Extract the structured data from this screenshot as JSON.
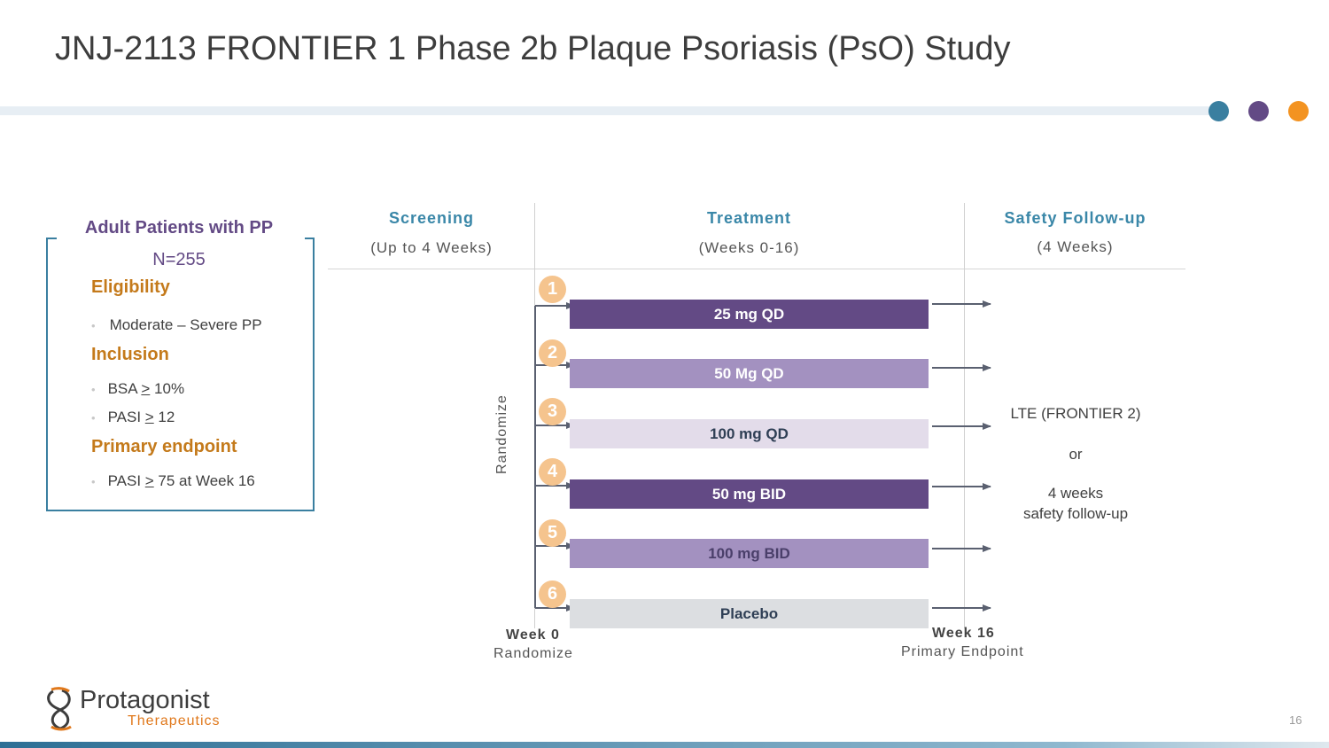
{
  "title": "JNJ-2113 FRONTIER 1 Phase 2b Plaque Psoriasis (PsO) Study",
  "colors": {
    "dot1": "#3a7fa0",
    "dot2": "#634a85",
    "dot3": "#f39321",
    "purple_dark": "#634a85",
    "purple_mid": "#a391c0",
    "purple_light": "#e3dcea",
    "gray_light": "#dcdee1",
    "accent_orange": "#c47a1b"
  },
  "patients": {
    "title": "Adult Patients with PP",
    "n": "N=255",
    "eligibility": {
      "heading": "Eligibility",
      "items": [
        "Moderate – Severe PP"
      ]
    },
    "inclusion": {
      "heading": "Inclusion",
      "items": [
        {
          "prefix": "BSA ",
          "sym": ">",
          "suffix": " 10%"
        },
        {
          "prefix": "PASI ",
          "sym": ">",
          "suffix": " 12"
        }
      ]
    },
    "endpoint": {
      "heading": "Primary endpoint",
      "items": [
        {
          "prefix": "PASI ",
          "sym": ">",
          "suffix": " 75 at Week 16"
        }
      ]
    }
  },
  "phases": [
    {
      "name": "Screening",
      "sub": "(Up to 4 Weeks)"
    },
    {
      "name": "Treatment",
      "sub": "(Weeks 0-16)"
    },
    {
      "name": "Safety Follow-up",
      "sub": "(4 Weeks)"
    }
  ],
  "randomize_label": "Randomize",
  "arms": [
    {
      "num": "1",
      "label": "25 mg QD"
    },
    {
      "num": "2",
      "label": "50 Mg QD"
    },
    {
      "num": "3",
      "label": "100 mg QD"
    },
    {
      "num": "4",
      "label": "50 mg BID"
    },
    {
      "num": "5",
      "label": "100 mg BID"
    },
    {
      "num": "6",
      "label": "Placebo"
    }
  ],
  "week0": {
    "label": "Week 0",
    "sub": "Randomize"
  },
  "week16": {
    "label": "Week 16",
    "sub": "Primary Endpoint"
  },
  "followup": {
    "line1": "LTE (FRONTIER 2)",
    "or": "or",
    "line2": "4 weeks",
    "line3": "safety follow-up"
  },
  "logo": {
    "name": "Protagonist",
    "sub": "Therapeutics"
  },
  "page_number": "16"
}
